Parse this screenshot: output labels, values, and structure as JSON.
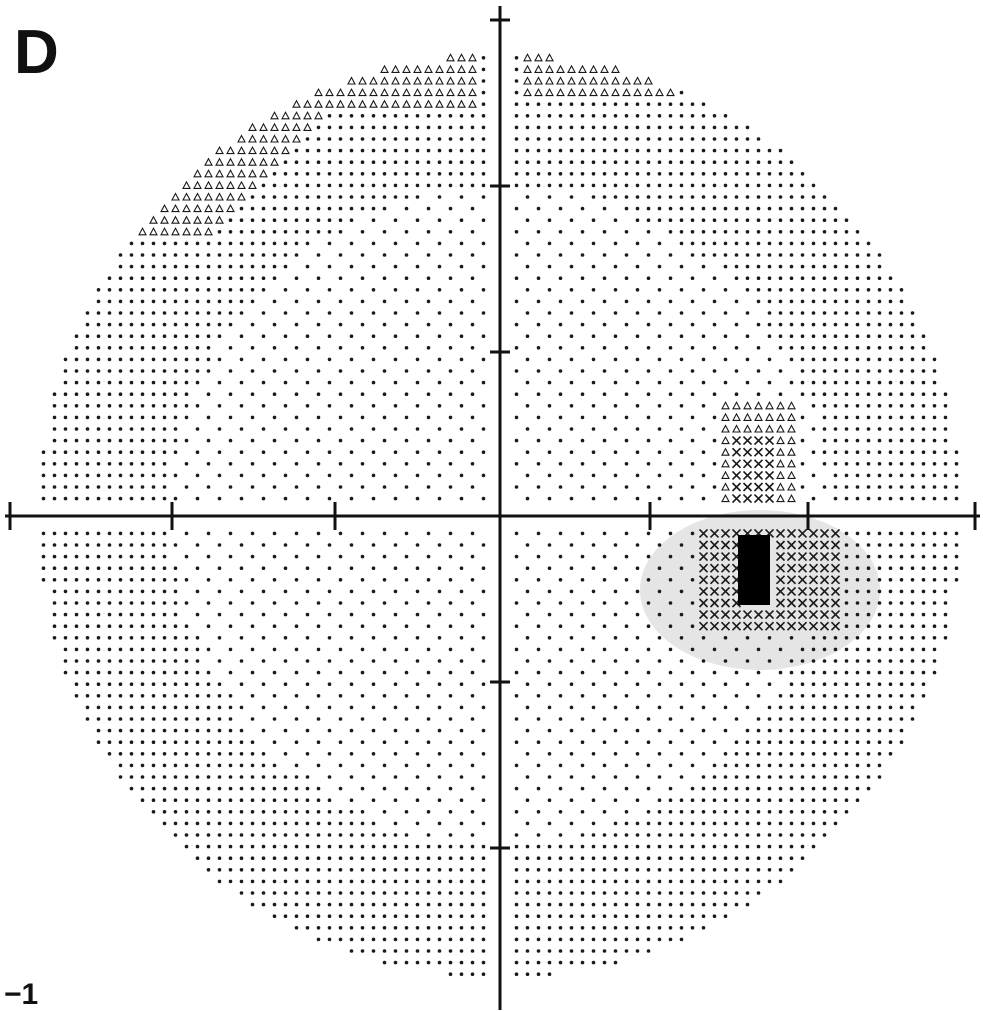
{
  "figure": {
    "panel_label": "D",
    "corner_label": "−1"
  },
  "colors": {
    "ink": "#1a1a1a",
    "background": "#ffffff",
    "scotoma_shadow": "#cfcfcf"
  },
  "symbols": {
    "normal": "dot",
    "mild_loss": "triangle",
    "moderate_loss": "cross-hatch",
    "absolute_loss": "solid-block"
  },
  "icons": [
    "visual-field-grey-scale-map"
  ]
}
